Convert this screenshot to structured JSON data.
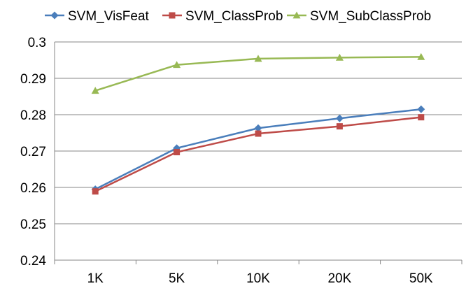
{
  "chart_data": {
    "type": "line",
    "title": "",
    "xlabel": "",
    "ylabel": "",
    "categories": [
      "1K",
      "5K",
      "10K",
      "20K",
      "50K"
    ],
    "ylim": [
      0.24,
      0.3
    ],
    "yticks": [
      "0.24",
      "0.25",
      "0.26",
      "0.27",
      "0.28",
      "0.29",
      "0.3"
    ],
    "grid": "horizontal",
    "legend_position": "top",
    "series": [
      {
        "name": "SVM_VisFeat",
        "color": "#4a7ebb",
        "marker": "diamond",
        "values": [
          0.2595,
          0.2708,
          0.2763,
          0.279,
          0.2815
        ]
      },
      {
        "name": "SVM_ClassProb",
        "color": "#be4b48",
        "marker": "square",
        "values": [
          0.2589,
          0.2697,
          0.2748,
          0.2768,
          0.2793
        ]
      },
      {
        "name": "SVM_SubClassProb",
        "color": "#98b954",
        "marker": "triangle",
        "values": [
          0.2866,
          0.2937,
          0.2954,
          0.2957,
          0.2959
        ]
      }
    ]
  }
}
